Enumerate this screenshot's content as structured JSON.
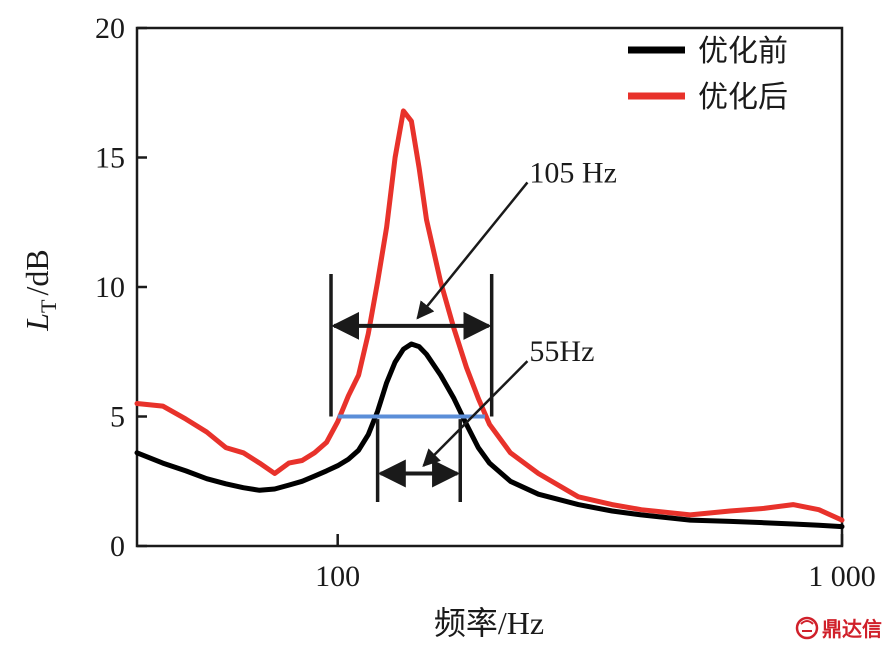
{
  "chart_data": {
    "type": "line",
    "xscale": "log",
    "xlim": [
      40,
      1000
    ],
    "ylim": [
      0,
      20
    ],
    "xticks": [
      100,
      1000
    ],
    "xtick_labels": [
      "100",
      "1 000"
    ],
    "yticks": [
      0,
      5,
      10,
      15,
      20
    ],
    "ytick_labels": [
      "0",
      "5",
      "10",
      "15",
      "20"
    ],
    "xlabel": "频率/Hz",
    "ylabel": "L",
    "ylabel_sub": "T",
    "ylabel_unit": "/dB",
    "grid": false,
    "legend_position": "top-right",
    "series": [
      {
        "name": "优化前",
        "color": "#000000",
        "points": [
          [
            40,
            3.6
          ],
          [
            45,
            3.2
          ],
          [
            50,
            2.9
          ],
          [
            55,
            2.6
          ],
          [
            60,
            2.4
          ],
          [
            65,
            2.25
          ],
          [
            70,
            2.15
          ],
          [
            75,
            2.2
          ],
          [
            80,
            2.35
          ],
          [
            85,
            2.5
          ],
          [
            90,
            2.7
          ],
          [
            95,
            2.9
          ],
          [
            100,
            3.1
          ],
          [
            105,
            3.35
          ],
          [
            110,
            3.7
          ],
          [
            115,
            4.3
          ],
          [
            120,
            5.2
          ],
          [
            125,
            6.3
          ],
          [
            130,
            7.1
          ],
          [
            135,
            7.6
          ],
          [
            140,
            7.8
          ],
          [
            145,
            7.7
          ],
          [
            150,
            7.4
          ],
          [
            160,
            6.6
          ],
          [
            170,
            5.7
          ],
          [
            180,
            4.7
          ],
          [
            190,
            3.8
          ],
          [
            200,
            3.2
          ],
          [
            220,
            2.5
          ],
          [
            250,
            2.0
          ],
          [
            300,
            1.6
          ],
          [
            350,
            1.35
          ],
          [
            400,
            1.2
          ],
          [
            500,
            1.0
          ],
          [
            600,
            0.95
          ],
          [
            700,
            0.9
          ],
          [
            800,
            0.85
          ],
          [
            900,
            0.8
          ],
          [
            1000,
            0.75
          ]
        ]
      },
      {
        "name": "优化后",
        "color": "#e8322b",
        "points": [
          [
            40,
            5.5
          ],
          [
            45,
            5.4
          ],
          [
            50,
            4.9
          ],
          [
            55,
            4.4
          ],
          [
            60,
            3.8
          ],
          [
            65,
            3.6
          ],
          [
            70,
            3.2
          ],
          [
            75,
            2.8
          ],
          [
            80,
            3.2
          ],
          [
            85,
            3.3
          ],
          [
            90,
            3.6
          ],
          [
            95,
            4.0
          ],
          [
            100,
            4.8
          ],
          [
            105,
            5.8
          ],
          [
            110,
            6.6
          ],
          [
            115,
            8.2
          ],
          [
            120,
            10.2
          ],
          [
            125,
            12.3
          ],
          [
            130,
            15.0
          ],
          [
            135,
            16.8
          ],
          [
            140,
            16.4
          ],
          [
            145,
            14.6
          ],
          [
            150,
            12.6
          ],
          [
            160,
            10.2
          ],
          [
            170,
            8.4
          ],
          [
            180,
            6.9
          ],
          [
            190,
            5.7
          ],
          [
            200,
            4.7
          ],
          [
            220,
            3.6
          ],
          [
            250,
            2.8
          ],
          [
            300,
            1.9
          ],
          [
            350,
            1.6
          ],
          [
            400,
            1.4
          ],
          [
            500,
            1.2
          ],
          [
            600,
            1.35
          ],
          [
            700,
            1.45
          ],
          [
            800,
            1.6
          ],
          [
            900,
            1.4
          ],
          [
            1000,
            1.0
          ]
        ]
      }
    ],
    "reference_line": {
      "y": 5,
      "x1": 100,
      "x2": 196,
      "color": "#5b8ed8"
    },
    "annotations": [
      {
        "label": "105 Hz",
        "y": 8.5,
        "x1": 97,
        "x2": 202,
        "bar_top": 10.5,
        "bar_bottom": 5.0,
        "pointer_to": [
          144,
          8.8
        ],
        "label_at": [
          240,
          14.5
        ]
      },
      {
        "label": "55Hz",
        "y": 2.8,
        "x1": 120,
        "x2": 175,
        "bar_top": 4.9,
        "bar_bottom": 1.7,
        "pointer_to": [
          148,
          3.1
        ],
        "label_at": [
          240,
          7.6
        ]
      }
    ]
  },
  "watermark": {
    "logo_icon": "dingdaxin-logo-icon",
    "text": "鼎达信"
  }
}
